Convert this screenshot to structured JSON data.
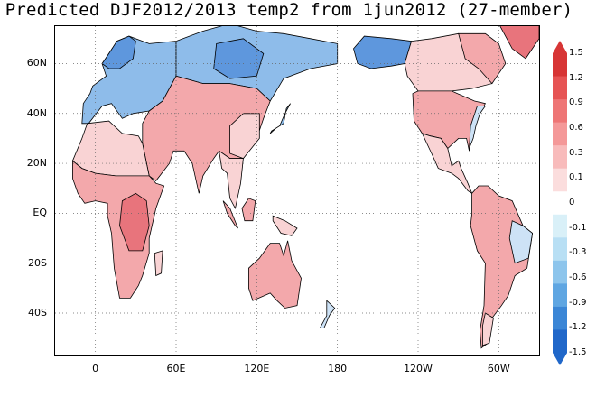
{
  "title": "Predicted DJF2012/2013 temp2 from 1jun2012 (27-member)",
  "map": {
    "lat_ticks": [
      {
        "label": "60N",
        "lat": 60
      },
      {
        "label": "40N",
        "lat": 40
      },
      {
        "label": "20N",
        "lat": 20
      },
      {
        "label": "EQ",
        "lat": 0
      },
      {
        "label": "20S",
        "lat": -20
      },
      {
        "label": "40S",
        "lat": -40
      }
    ],
    "lon_ticks": [
      {
        "label": "0",
        "lon": 0
      },
      {
        "label": "60E",
        "lon": 60
      },
      {
        "label": "120E",
        "lon": 120
      },
      {
        "label": "180",
        "lon": 180
      },
      {
        "label": "120W",
        "lon": 240
      },
      {
        "label": "60W",
        "lon": 300
      }
    ],
    "lon_range": [
      -30,
      330
    ],
    "lat_range": [
      -57,
      75
    ],
    "grid": "dotted",
    "colors": {
      "strong_warm": "#e8747c",
      "warm": "#f3a8ab",
      "light_warm": "#f9d3d4",
      "light_cool": "#cde2f6",
      "cool": "#8ebcea",
      "strong_cool": "#5e97dd"
    }
  },
  "colorbar": {
    "labels": [
      "1.5",
      "1.2",
      "0.9",
      "0.6",
      "0.3",
      "0.1",
      "0",
      "-0.1",
      "-0.3",
      "-0.6",
      "-0.9",
      "-1.2",
      "-1.5"
    ],
    "colors": [
      "#d73535",
      "#e65454",
      "#ee7575",
      "#f49898",
      "#f8bbbb",
      "#fbdddd",
      "#ffffff",
      "#d9f0f8",
      "#b8dff4",
      "#8dc5ec",
      "#5fa6e2",
      "#3b86d6",
      "#2067c9"
    ]
  }
}
